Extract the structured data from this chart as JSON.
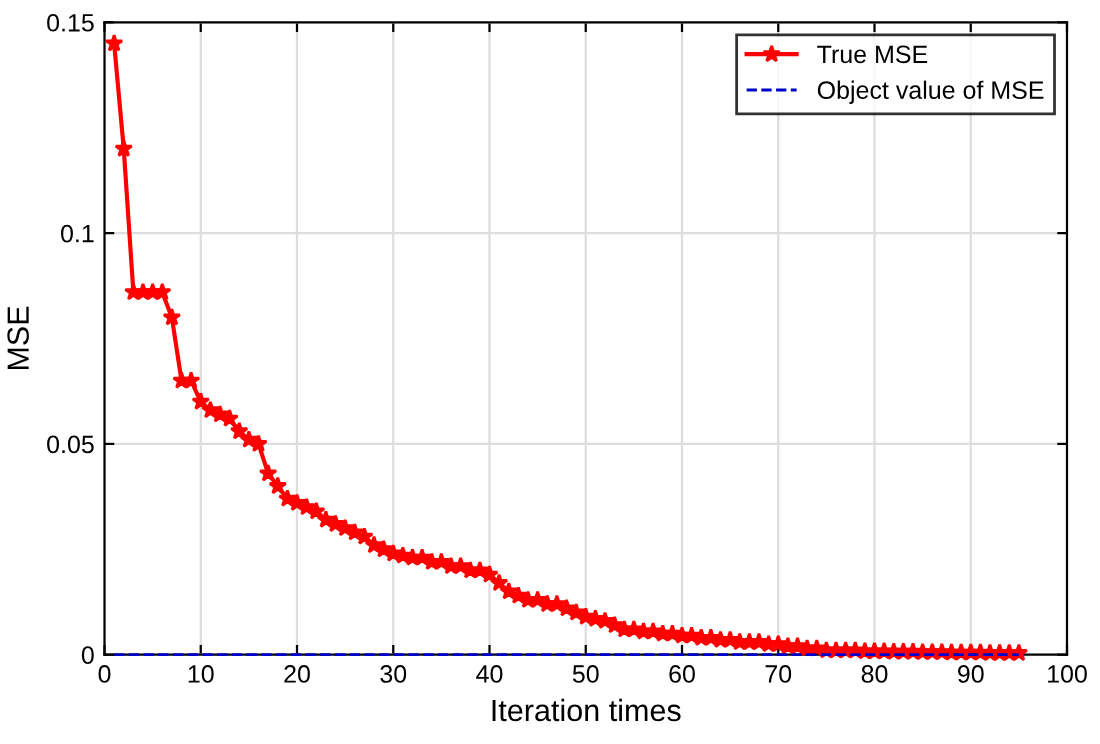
{
  "chart_data": {
    "type": "line",
    "xlabel": "Iteration times",
    "ylabel": "MSE",
    "xlim": [
      0,
      100
    ],
    "ylim": [
      0,
      0.15
    ],
    "xticks": [
      0,
      10,
      20,
      30,
      40,
      50,
      60,
      70,
      80,
      90,
      100
    ],
    "yticks": [
      0,
      0.05,
      0.1,
      0.15
    ],
    "grid": true,
    "legend": "top right",
    "series": [
      {
        "name": "True MSE",
        "color": "#ff0000",
        "marker": "star",
        "line_style": "solid",
        "x": [
          1,
          2,
          3,
          4,
          5,
          6,
          7,
          8,
          9,
          10,
          11,
          12,
          13,
          14,
          15,
          16,
          17,
          18,
          19,
          20,
          21,
          22,
          23,
          24,
          25,
          26,
          27,
          28,
          29,
          30,
          31,
          32,
          33,
          34,
          35,
          36,
          37,
          38,
          39,
          40,
          41,
          42,
          43,
          44,
          45,
          46,
          47,
          48,
          49,
          50,
          51,
          52,
          53,
          54,
          55,
          56,
          57,
          58,
          59,
          60,
          61,
          62,
          63,
          64,
          65,
          66,
          67,
          68,
          69,
          70,
          71,
          72,
          73,
          74,
          75,
          76,
          77,
          78,
          79,
          80,
          81,
          82,
          83,
          84,
          85,
          86,
          87,
          88,
          89,
          90,
          91,
          92,
          93,
          94,
          95
        ],
        "values": [
          0.145,
          0.12,
          0.086,
          0.086,
          0.086,
          0.086,
          0.08,
          0.065,
          0.065,
          0.06,
          0.058,
          0.057,
          0.056,
          0.053,
          0.051,
          0.05,
          0.043,
          0.04,
          0.037,
          0.036,
          0.035,
          0.034,
          0.032,
          0.031,
          0.03,
          0.029,
          0.028,
          0.026,
          0.025,
          0.024,
          0.0235,
          0.023,
          0.023,
          0.022,
          0.022,
          0.021,
          0.021,
          0.02,
          0.02,
          0.019,
          0.017,
          0.015,
          0.014,
          0.013,
          0.013,
          0.012,
          0.012,
          0.011,
          0.01,
          0.009,
          0.0085,
          0.008,
          0.007,
          0.006,
          0.006,
          0.0055,
          0.0055,
          0.005,
          0.005,
          0.0045,
          0.0045,
          0.004,
          0.004,
          0.0035,
          0.0035,
          0.003,
          0.003,
          0.003,
          0.0025,
          0.0025,
          0.002,
          0.002,
          0.0015,
          0.0015,
          0.001,
          0.001,
          0.001,
          0.001,
          0.0008,
          0.0008,
          0.0008,
          0.0007,
          0.0007,
          0.0007,
          0.0006,
          0.0006,
          0.0006,
          0.0005,
          0.0005,
          0.0005,
          0.0005,
          0.0004,
          0.0004,
          0.0004,
          0.0004
        ]
      },
      {
        "name": "Object value of MSE",
        "color": "#0000cc",
        "marker": "none",
        "line_style": "dashed",
        "x": [
          1,
          95
        ],
        "values": [
          0,
          0
        ]
      }
    ]
  }
}
